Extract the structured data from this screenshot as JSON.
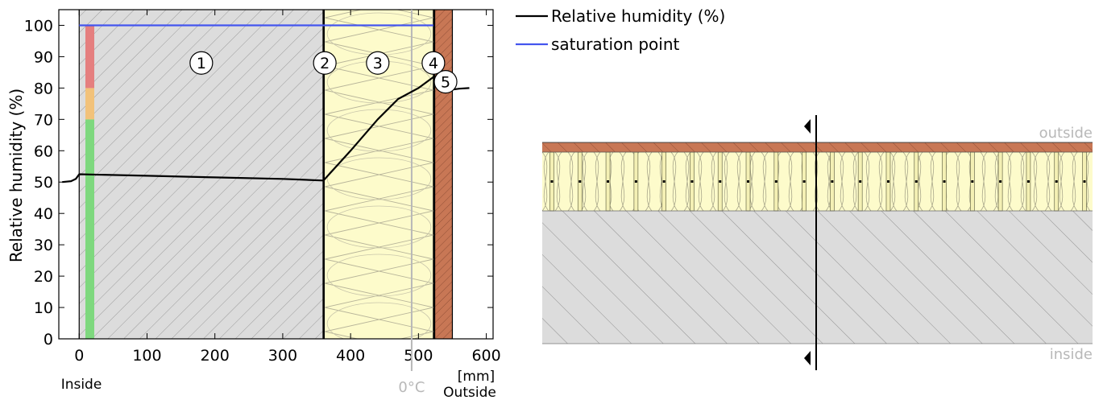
{
  "chart_data": {
    "type": "line",
    "ylabel": "Relative humidity (%)",
    "xunit": "[mm]",
    "xlim": [
      -30,
      610
    ],
    "ylim": [
      0,
      105
    ],
    "x_ticks": [
      0,
      100,
      200,
      300,
      400,
      500,
      600
    ],
    "y_ticks": [
      0,
      10,
      20,
      30,
      40,
      50,
      60,
      70,
      80,
      90,
      100
    ],
    "layers": [
      {
        "label": "1",
        "material": "concrete",
        "x_start": 0,
        "x_end": 360
      },
      {
        "label": "2",
        "material": "membrane",
        "x_start": 360,
        "x_end": 362
      },
      {
        "label": "3",
        "material": "insulation",
        "x_start": 362,
        "x_end": 522
      },
      {
        "label": "4",
        "material": "membrane",
        "x_start": 522,
        "x_end": 524
      },
      {
        "label": "5",
        "material": "brick",
        "x_start": 524,
        "x_end": 550
      }
    ],
    "series": [
      {
        "name": "Relative humidity (%)",
        "color": "#000000",
        "x": [
          -25,
          -12,
          -5,
          0,
          100,
          200,
          300,
          360,
          400,
          440,
          470,
          500,
          522,
          540,
          550,
          560,
          575
        ],
        "y": [
          50,
          50.3,
          51,
          52.5,
          52,
          51.5,
          51,
          50.5,
          60,
          70,
          76.5,
          80,
          83.5,
          84,
          79.5,
          79.8,
          80
        ]
      },
      {
        "name": "saturation point",
        "color": "#4455ee",
        "x": [
          0,
          522
        ],
        "y": [
          100,
          100
        ]
      }
    ],
    "zero_c_line": {
      "x": 490,
      "label": "0°C",
      "color": "#b8b8b8"
    },
    "indicator_bar": [
      {
        "from": 0,
        "to": 70,
        "color": "#7ed87e"
      },
      {
        "from": 70,
        "to": 80,
        "color": "#f2c27a"
      },
      {
        "from": 80,
        "to": 100,
        "color": "#e57f7f"
      }
    ],
    "inside_label": "Inside",
    "outside_label": "Outside",
    "legend_position": "top-right"
  },
  "section": {
    "top_label": "outside",
    "bottom_label": "inside",
    "stud_count": 20
  },
  "colors": {
    "concrete": "#dcdcdc",
    "insulation": "#fdfbcb",
    "brick": "#c87755",
    "membrane": "#000000"
  }
}
